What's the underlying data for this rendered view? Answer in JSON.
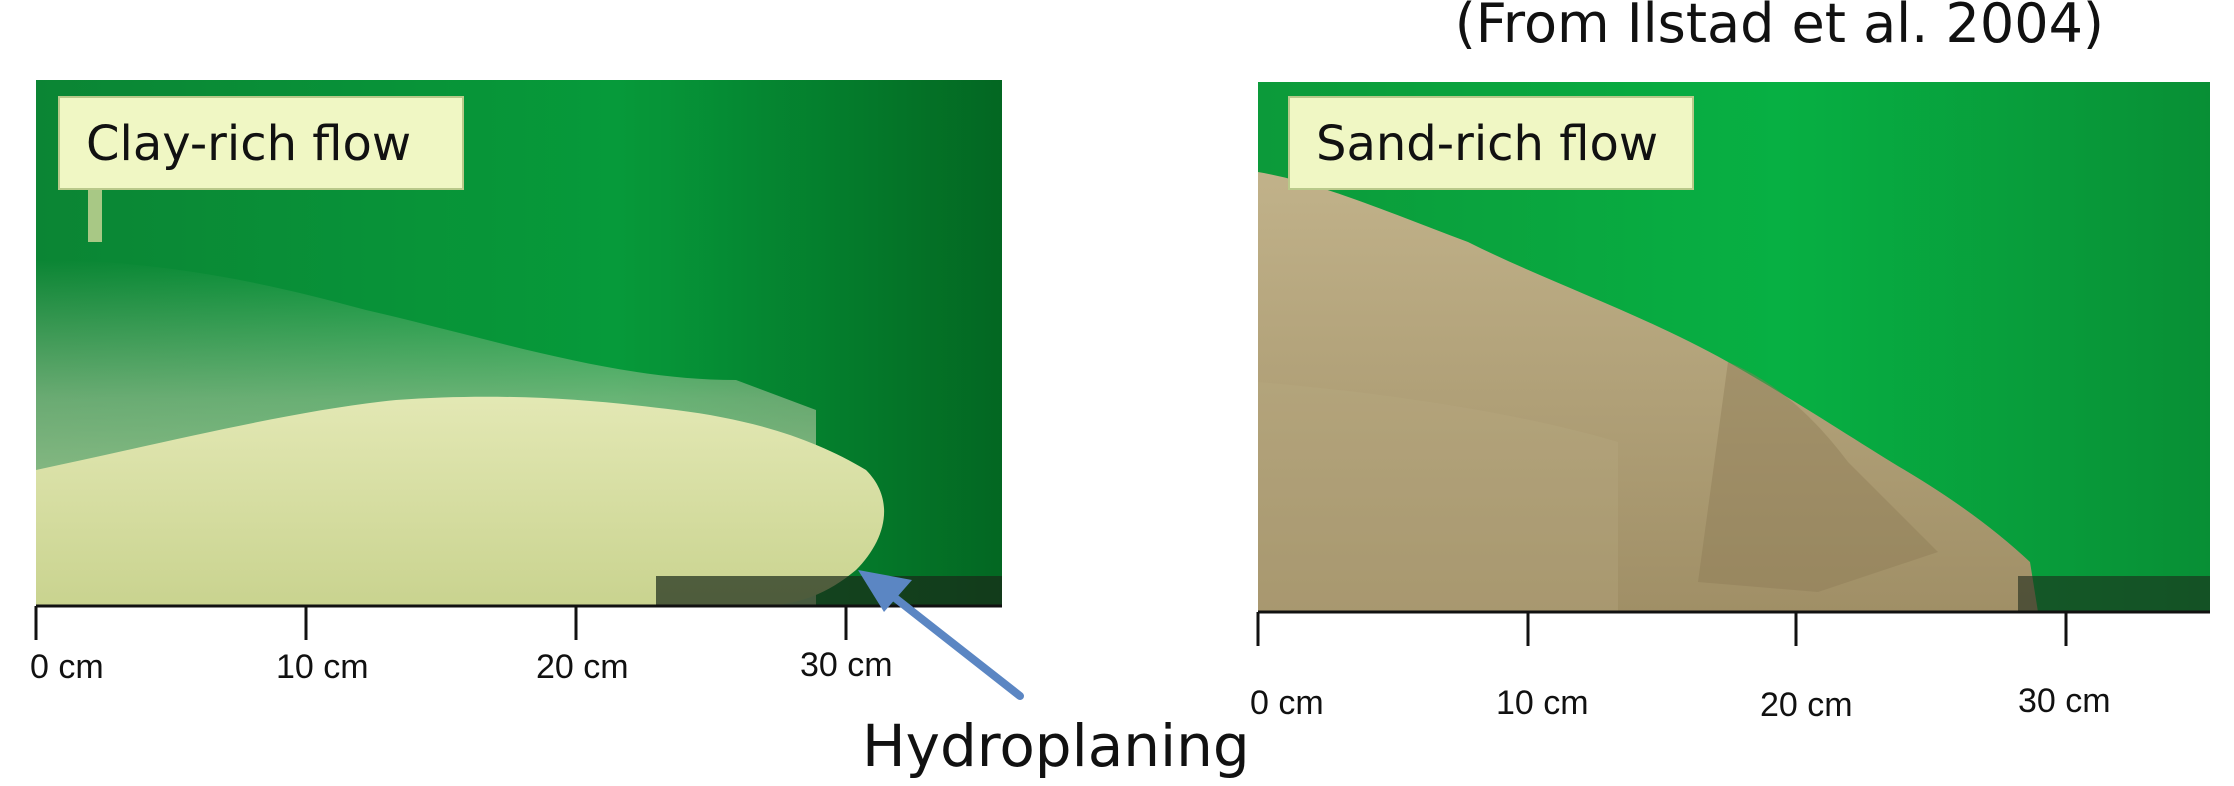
{
  "citation": "(From Ilstad et al. 2004)",
  "panels": [
    {
      "label": "Clay-rich flow",
      "scale_ticks": [
        "0 cm",
        "10 cm",
        "20 cm",
        "30 cm"
      ]
    },
    {
      "label": "Sand-rich flow",
      "scale_ticks": [
        "0 cm",
        "10 cm",
        "20 cm",
        "30 cm"
      ]
    }
  ],
  "annotation": "Hydroplaning",
  "colors": {
    "water": "#0a9b3c",
    "water_dark": "#056a26",
    "clay_sediment": "#d8e0a0",
    "sand_sediment": "#b3a27a",
    "arrow": "#5b86c3"
  }
}
